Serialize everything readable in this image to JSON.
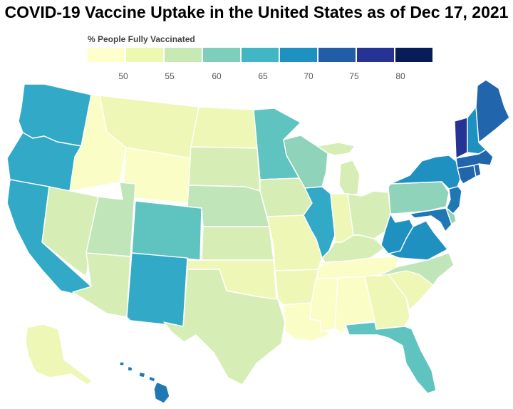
{
  "title": "COVID-19 Vaccine Uptake in the United States as of Dec 17, 2021",
  "legend": {
    "label": "% People Fully Vaccinated",
    "ticks": [
      "50",
      "55",
      "60",
      "65",
      "70",
      "75",
      "80"
    ],
    "colors": [
      "#ffffcc",
      "#edf8b1",
      "#c7e9b4",
      "#7fcdbb",
      "#41b6c4",
      "#1d91c0",
      "#225ea8",
      "#253494",
      "#081d58"
    ]
  },
  "colors": {
    "c50": "#fafdc6",
    "c52": "#eef7b5",
    "c55": "#d6eeb6",
    "c60": "#a8dcb8",
    "c62": "#7fcdbb",
    "c65": "#41b6c4",
    "c67": "#2aa1c8",
    "c70": "#1d8ec0",
    "c73": "#2166ac",
    "c75": "#225ea8",
    "c78": "#253494"
  },
  "chart_data": {
    "type": "choropleth",
    "title": "COVID-19 Vaccine Uptake in the United States as of Dec 17, 2021",
    "legend_label": "% People Fully Vaccinated",
    "scale_ticks": [
      50,
      55,
      60,
      65,
      70,
      75,
      80
    ],
    "states": {
      "WA": 68,
      "OR": 67,
      "CA": 68,
      "NV": 56,
      "ID": 49,
      "MT": 53,
      "WY": 46,
      "UT": 60,
      "AZ": 57,
      "CO": 66,
      "NM": 67,
      "ND": 51,
      "SD": 57,
      "NE": 60,
      "KS": 57,
      "OK": 51,
      "TX": 56,
      "MN": 66,
      "IA": 57,
      "MO": 51,
      "AR": 50,
      "LA": 49,
      "WI": 63,
      "IL": 67,
      "MI": 55,
      "IN": 50,
      "OH": 54,
      "KY": 54,
      "TN": 49,
      "MS": 47,
      "AL": 46,
      "GA": 51,
      "FL": 65,
      "SC": 52,
      "NC": 60,
      "VA": 70,
      "WV": 70,
      "PA": 61,
      "NY": 69,
      "VT": 77,
      "NH": 69,
      "ME": 74,
      "MA": 74,
      "RI": 74,
      "CT": 73,
      "NJ": 72,
      "DE": 63,
      "MD": 72,
      "AK": 52,
      "HI": 72
    }
  }
}
